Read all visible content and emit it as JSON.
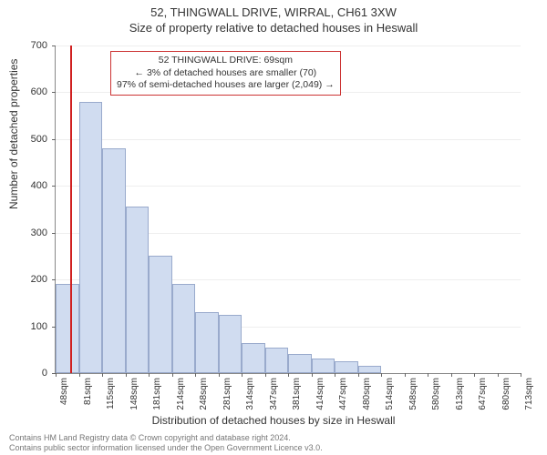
{
  "header": {
    "line1": "52, THINGWALL DRIVE, WIRRAL, CH61 3XW",
    "line2": "Size of property relative to detached houses in Heswall"
  },
  "chart": {
    "type": "histogram",
    "ylabel": "Number of detached properties",
    "xlabel": "Distribution of detached houses by size in Heswall",
    "ylim": [
      0,
      700
    ],
    "ytick_step": 100,
    "yticks": [
      0,
      100,
      200,
      300,
      400,
      500,
      600,
      700
    ],
    "xticks": [
      "48sqm",
      "81sqm",
      "115sqm",
      "148sqm",
      "181sqm",
      "214sqm",
      "248sqm",
      "281sqm",
      "314sqm",
      "347sqm",
      "381sqm",
      "414sqm",
      "447sqm",
      "480sqm",
      "514sqm",
      "548sqm",
      "580sqm",
      "613sqm",
      "647sqm",
      "680sqm",
      "713sqm"
    ],
    "values": [
      190,
      580,
      480,
      355,
      250,
      190,
      130,
      125,
      65,
      55,
      40,
      32,
      25,
      15,
      0,
      0,
      0,
      0,
      0,
      0
    ],
    "bar_fill": "#d0dcf0",
    "bar_stroke": "#99aacc",
    "background_color": "#ffffff",
    "grid_color": "#eeeeee",
    "axis_color": "#888888",
    "marker": {
      "position_category_index": 0.64,
      "color": "#d02020"
    },
    "annotation": {
      "line1": "52 THINGWALL DRIVE: 69sqm",
      "line2": "← 3% of detached houses are smaller (70)",
      "line3": "97% of semi-detached houses are larger (2,049) →",
      "border_color": "#cc3333"
    }
  },
  "footer": {
    "line1": "Contains HM Land Registry data © Crown copyright and database right 2024.",
    "line2": "Contains public sector information licensed under the Open Government Licence v3.0."
  }
}
